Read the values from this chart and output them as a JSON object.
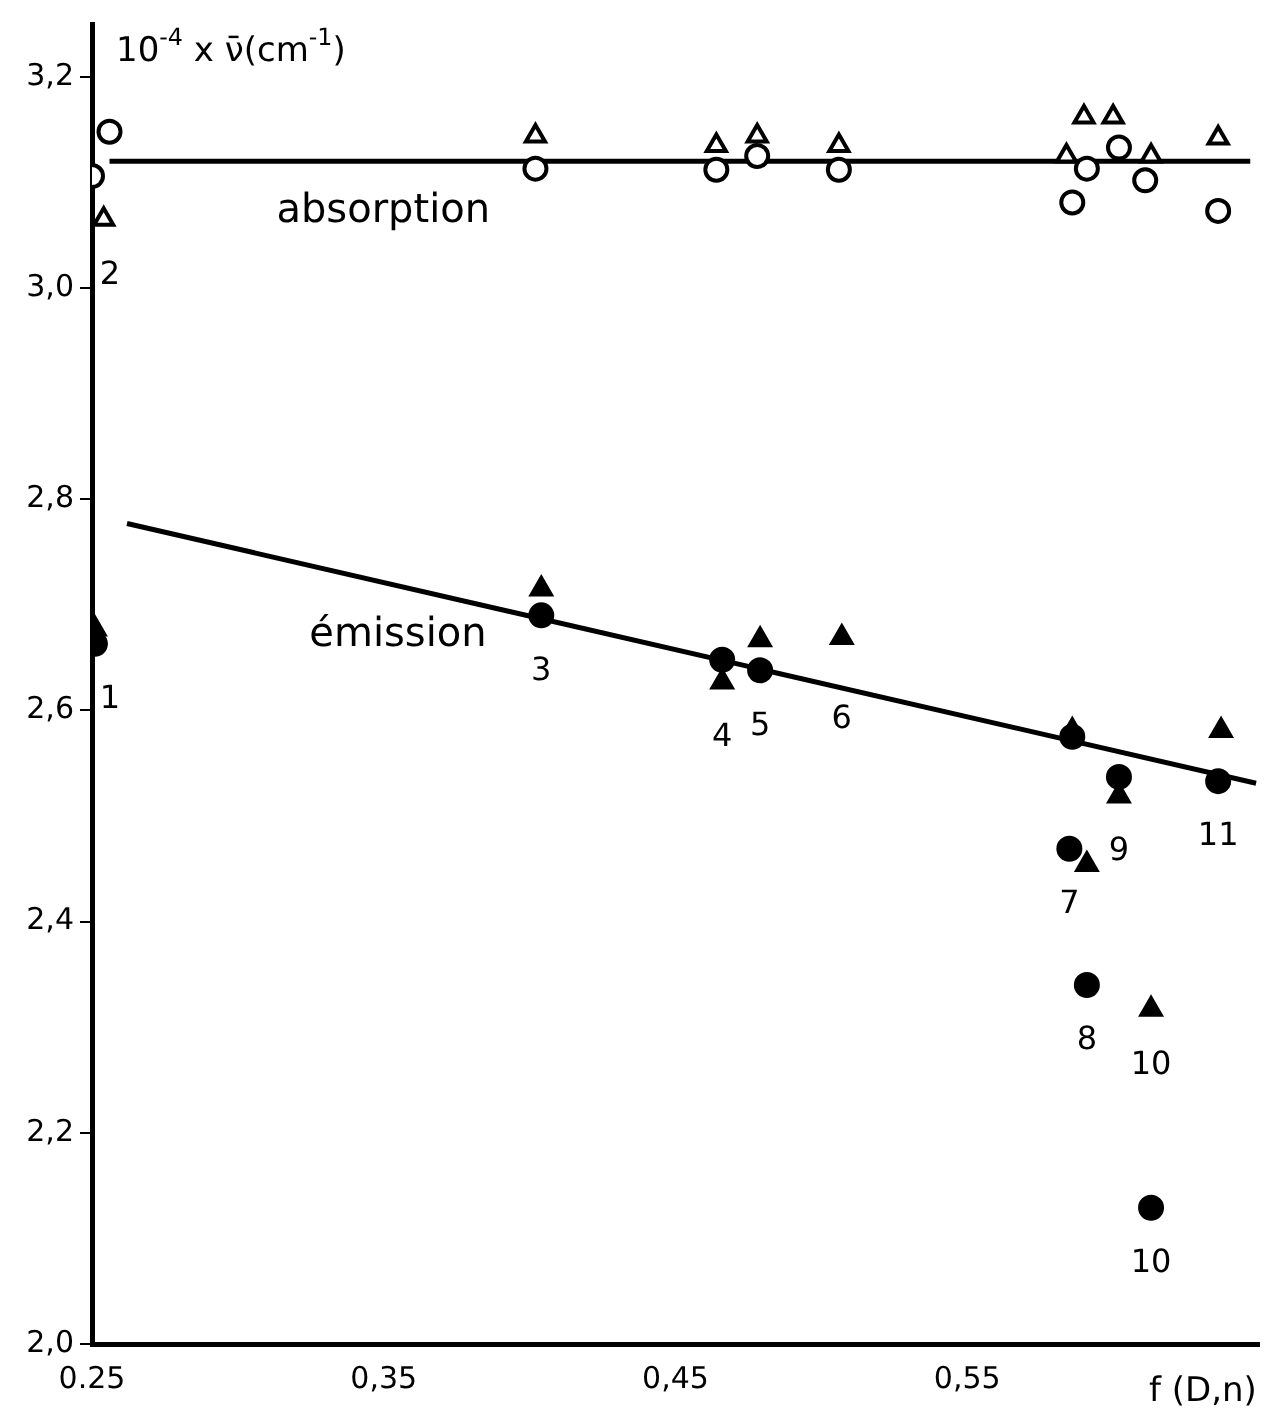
{
  "chart_data": {
    "type": "scatter",
    "xlabel": "f (D,n)",
    "ylabel": "10$^{-4}$ x ν̄(cm$^{-1}$)",
    "xlim": [
      0.25,
      0.65
    ],
    "ylim": [
      2.0,
      3.25
    ],
    "xticks": [
      {
        "value": 0.25,
        "label": "0.25"
      },
      {
        "value": 0.35,
        "label": "0,35"
      },
      {
        "value": 0.45,
        "label": "0,45"
      },
      {
        "value": 0.55,
        "label": "0,55"
      }
    ],
    "yticks": [
      {
        "value": 2.0,
        "label": "2,0"
      },
      {
        "value": 2.2,
        "label": "2,2"
      },
      {
        "value": 2.4,
        "label": "2,4"
      },
      {
        "value": 2.6,
        "label": "2,6"
      },
      {
        "value": 2.8,
        "label": "2,8"
      },
      {
        "value": 3.0,
        "label": "3,0"
      },
      {
        "value": 3.2,
        "label": "3,2"
      }
    ],
    "grid": false,
    "legend": false,
    "series": [
      {
        "type": "line",
        "name": "absorption",
        "color": "#000000",
        "marker": "none",
        "x": [
          0.256,
          0.647
        ],
        "values": [
          3.12,
          3.12
        ]
      },
      {
        "type": "line",
        "name": "émission",
        "color": "#000000",
        "marker": "none",
        "x": [
          0.262,
          0.649
        ],
        "values": [
          2.777,
          2.531
        ]
      },
      {
        "color": "#ffffff",
        "marker": "circle",
        "x": [
          0.256,
          0.25,
          0.402,
          0.464,
          0.478,
          0.506,
          0.591,
          0.602,
          0.586,
          0.611,
          0.636
        ],
        "values": [
          3.148,
          3.106,
          3.113,
          3.112,
          3.125,
          3.112,
          3.113,
          3.133,
          3.081,
          3.102,
          3.073
        ]
      },
      {
        "color": "#ffffff",
        "marker": "triangle",
        "x": [
          0.254,
          0.402,
          0.464,
          0.478,
          0.506,
          0.59,
          0.6,
          0.584,
          0.613,
          0.636
        ],
        "values": [
          3.065,
          3.144,
          3.135,
          3.144,
          3.135,
          3.162,
          3.162,
          3.125,
          3.125,
          3.142
        ]
      },
      {
        "color": "#000000",
        "marker": "circle",
        "x": [
          0.251,
          0.404,
          0.466,
          0.479,
          0.586,
          0.585,
          0.591,
          0.602,
          0.613,
          0.636
        ],
        "values": [
          2.663,
          2.69,
          2.648,
          2.638,
          2.575,
          2.469,
          2.34,
          2.537,
          2.129,
          2.533
        ]
      },
      {
        "color": "#000000",
        "marker": "triangle",
        "x": [
          0.251,
          0.404,
          0.466,
          0.479,
          0.507,
          0.586,
          0.591,
          0.602,
          0.613,
          0.637
        ],
        "values": [
          2.677,
          2.715,
          2.627,
          2.667,
          2.669,
          2.581,
          2.454,
          2.519,
          2.317,
          2.581
        ]
      }
    ],
    "annotations": [
      {
        "text": "1",
        "x": 0.251,
        "y": 2.663
      },
      {
        "text": "2",
        "x": 0.254,
        "y": 3.065
      },
      {
        "text": "3",
        "x": 0.404,
        "y": 2.69
      },
      {
        "text": "4",
        "x": 0.466,
        "y": 2.627
      },
      {
        "text": "5",
        "x": 0.479,
        "y": 2.638
      },
      {
        "text": "6",
        "x": 0.507,
        "y": 2.669
      },
      {
        "text": "7",
        "x": 0.585,
        "y": 2.469
      },
      {
        "text": "8",
        "x": 0.591,
        "y": 2.34
      },
      {
        "text": "9",
        "x": 0.602,
        "y": 2.519
      },
      {
        "text": "10",
        "x": 0.613,
        "y": 2.317
      },
      {
        "text": "10",
        "x": 0.613,
        "y": 2.129
      },
      {
        "text": "11",
        "x": 0.636,
        "y": 2.533
      }
    ]
  }
}
